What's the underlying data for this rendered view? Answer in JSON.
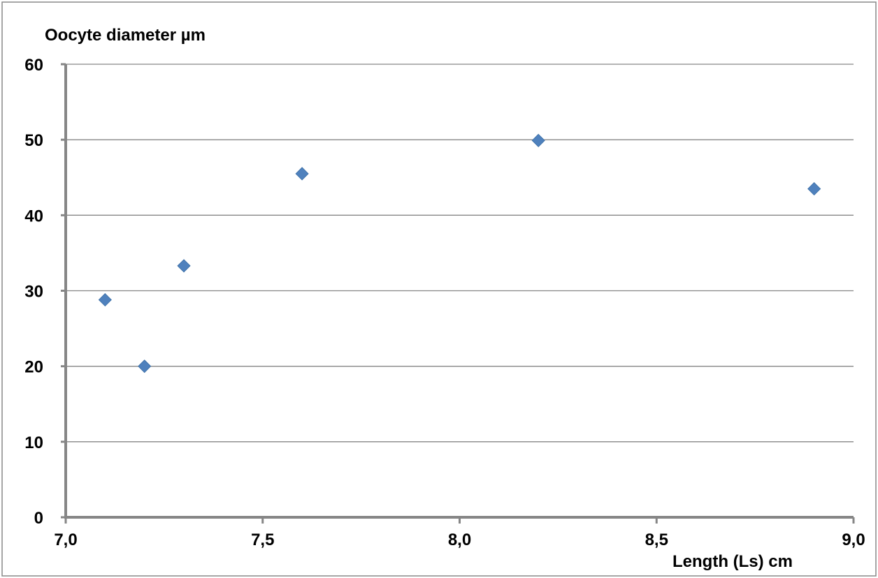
{
  "chart_data": {
    "type": "scatter",
    "title": "",
    "xlabel": "Length (Ls)  cm",
    "ylabel": "Oocyte diameter µm",
    "xlim": [
      7.0,
      9.0
    ],
    "ylim": [
      0,
      60
    ],
    "x_ticks": [
      7.0,
      7.5,
      8.0,
      8.5,
      9.0
    ],
    "x_tick_labels": [
      "7,0",
      "7,5",
      "8,0",
      "8,5",
      "9,0"
    ],
    "y_ticks": [
      0,
      10,
      20,
      30,
      40,
      50,
      60
    ],
    "y_tick_labels": [
      "0",
      "10",
      "20",
      "30",
      "40",
      "50",
      "60"
    ],
    "grid": "horizontal",
    "legend": "none",
    "marker": "diamond",
    "marker_color": "#4F81BD",
    "series": [
      {
        "points": [
          {
            "x": 7.1,
            "y": 28.8
          },
          {
            "x": 7.2,
            "y": 20.0
          },
          {
            "x": 7.3,
            "y": 33.3
          },
          {
            "x": 7.6,
            "y": 45.5
          },
          {
            "x": 8.2,
            "y": 49.9
          },
          {
            "x": 8.9,
            "y": 43.5
          }
        ]
      }
    ]
  }
}
